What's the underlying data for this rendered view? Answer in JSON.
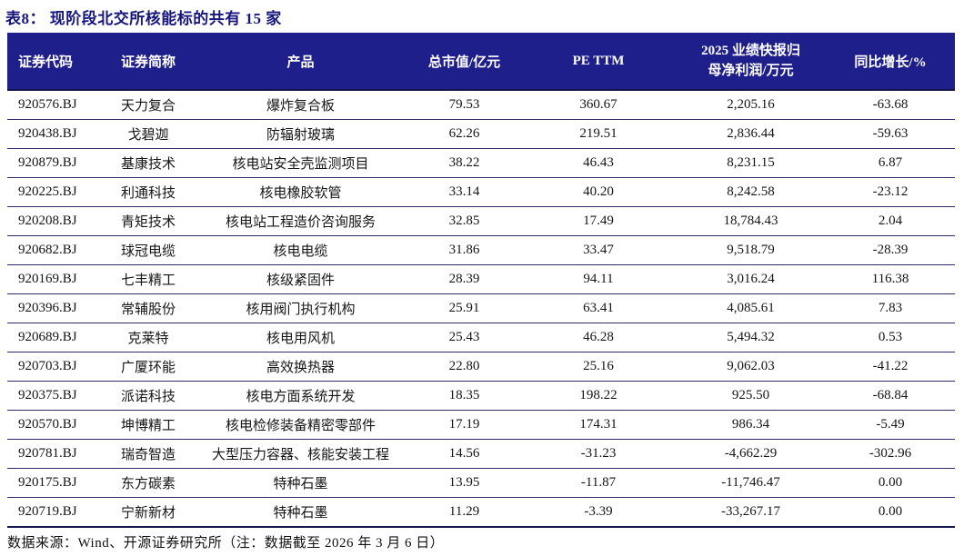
{
  "title": "表8：  现阶段北交所核能标的共有 15 家",
  "colors": {
    "header_bg": "#1f1f8c",
    "title_text": "#17177e",
    "grid_line": "#2b2b6a",
    "heavy_line": "#15154a",
    "body_text": "#151515"
  },
  "table": {
    "columns": [
      {
        "key": "code",
        "label": "证券代码"
      },
      {
        "key": "name",
        "label": "证券简称"
      },
      {
        "key": "product",
        "label": "产品"
      },
      {
        "key": "mcap",
        "label": "总市值/亿元"
      },
      {
        "key": "pe",
        "label": "PE TTM"
      },
      {
        "key": "profit",
        "line1": "2025 业绩快报归",
        "line2": "母净利润/万元"
      },
      {
        "key": "yoy",
        "label": "同比增长/%"
      }
    ],
    "rows": [
      [
        "920576.BJ",
        "天力复合",
        "爆炸复合板",
        "79.53",
        "360.67",
        "2,205.16",
        "-63.68"
      ],
      [
        "920438.BJ",
        "戈碧迦",
        "防辐射玻璃",
        "62.26",
        "219.51",
        "2,836.44",
        "-59.63"
      ],
      [
        "920879.BJ",
        "基康技术",
        "核电站安全壳监测项目",
        "38.22",
        "46.43",
        "8,231.15",
        "6.87"
      ],
      [
        "920225.BJ",
        "利通科技",
        "核电橡胶软管",
        "33.14",
        "40.20",
        "8,242.58",
        "-23.12"
      ],
      [
        "920208.BJ",
        "青矩技术",
        "核电站工程造价咨询服务",
        "32.85",
        "17.49",
        "18,784.43",
        "2.04"
      ],
      [
        "920682.BJ",
        "球冠电缆",
        "核电电缆",
        "31.86",
        "33.47",
        "9,518.79",
        "-28.39"
      ],
      [
        "920169.BJ",
        "七丰精工",
        "核级紧固件",
        "28.39",
        "94.11",
        "3,016.24",
        "116.38"
      ],
      [
        "920396.BJ",
        "常辅股份",
        "核用阀门执行机构",
        "25.91",
        "63.41",
        "4,085.61",
        "7.83"
      ],
      [
        "920689.BJ",
        "克莱特",
        "核电用风机",
        "25.43",
        "46.28",
        "5,494.32",
        "0.53"
      ],
      [
        "920703.BJ",
        "广厦环能",
        "高效换热器",
        "22.80",
        "25.16",
        "9,062.03",
        "-41.22"
      ],
      [
        "920375.BJ",
        "派诺科技",
        "核电方面系统开发",
        "18.35",
        "198.22",
        "925.50",
        "-68.84"
      ],
      [
        "920570.BJ",
        "坤博精工",
        "核电检修装备精密零部件",
        "17.19",
        "174.31",
        "986.34",
        "-5.49"
      ],
      [
        "920781.BJ",
        "瑞奇智造",
        "大型压力容器、核能安装工程",
        "14.56",
        "-31.23",
        "-4,662.29",
        "-302.96"
      ],
      [
        "920175.BJ",
        "东方碳素",
        "特种石墨",
        "13.95",
        "-11.87",
        "-11,746.47",
        "0.00"
      ],
      [
        "920719.BJ",
        "宁新新材",
        "特种石墨",
        "11.29",
        "-3.39",
        "-33,267.17",
        "0.00"
      ]
    ]
  },
  "footer": {
    "text": "数据来源：Wind、开源证券研究所（注：数据截至 2026 年 3 月 6 日）"
  }
}
